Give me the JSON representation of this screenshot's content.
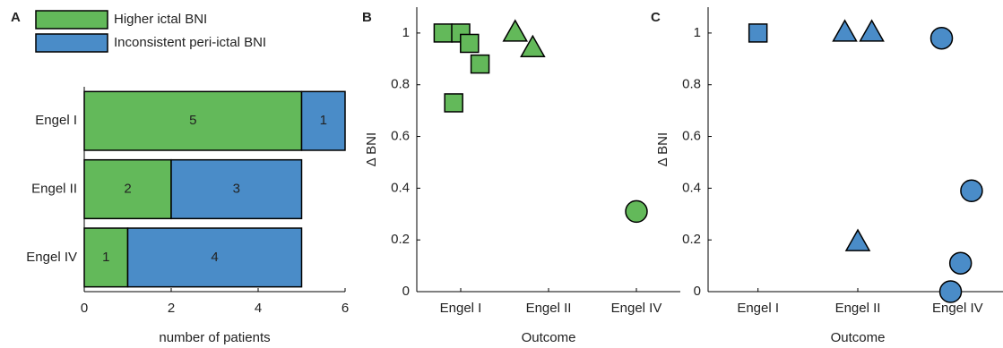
{
  "chart_data": [
    {
      "type": "hbar_stacked",
      "panel": "A",
      "xlabel": "number of patients",
      "categories": [
        "Engel I",
        "Engel II",
        "Engel IV"
      ],
      "series": [
        {
          "name": "Higher ictal BNI",
          "color": "#63b95a",
          "values": [
            5,
            2,
            1
          ]
        },
        {
          "name": "Inconsistent peri-ictal BNI",
          "color": "#4a8cc8",
          "values": [
            1,
            3,
            4
          ]
        }
      ],
      "xlim": [
        0,
        6
      ],
      "xticks": [
        0,
        2,
        4,
        6
      ]
    },
    {
      "type": "scatter",
      "panel": "B",
      "xlabel": "Outcome",
      "ylabel": "Δ BNI",
      "xlim": [
        0.5,
        3.5
      ],
      "xticks": [
        {
          "value": 1,
          "label": "Engel I"
        },
        {
          "value": 2,
          "label": "Engel II"
        },
        {
          "value": 3,
          "label": "Engel IV"
        }
      ],
      "ylim": [
        0,
        1.1
      ],
      "yticks": [
        0,
        0.2,
        0.4,
        0.6,
        0.8,
        1
      ],
      "series": [
        {
          "marker": "square",
          "color": "#63b95a",
          "x": [
            0.8,
            1.0,
            1.1,
            1.22,
            0.92
          ],
          "values": [
            1.0,
            1.0,
            0.96,
            0.88,
            0.73
          ]
        },
        {
          "marker": "triangle",
          "color": "#63b95a",
          "x": [
            1.62,
            1.82
          ],
          "values": [
            1.0,
            0.94
          ]
        },
        {
          "marker": "circle",
          "color": "#63b95a",
          "x": [
            3.0
          ],
          "values": [
            0.31
          ]
        }
      ]
    },
    {
      "type": "scatter",
      "panel": "C",
      "xlabel": "Outcome",
      "ylabel": "Δ BNI",
      "xlim": [
        0.5,
        3.5
      ],
      "xticks": [
        {
          "value": 1,
          "label": "Engel I"
        },
        {
          "value": 2,
          "label": "Engel II"
        },
        {
          "value": 3,
          "label": "Engel IV"
        }
      ],
      "ylim": [
        0,
        1.1
      ],
      "yticks": [
        0,
        0.2,
        0.4,
        0.6,
        0.8,
        1
      ],
      "series": [
        {
          "marker": "square",
          "color": "#4a8cc8",
          "x": [
            1.0
          ],
          "values": [
            1.0
          ]
        },
        {
          "marker": "triangle",
          "color": "#4a8cc8",
          "x": [
            1.87,
            2.14,
            2.0
          ],
          "values": [
            1.0,
            1.0,
            0.19
          ]
        },
        {
          "marker": "circle",
          "color": "#4a8cc8",
          "x": [
            2.84,
            3.14,
            3.03,
            2.93
          ],
          "values": [
            0.98,
            0.39,
            0.11,
            0.0
          ]
        }
      ]
    }
  ]
}
